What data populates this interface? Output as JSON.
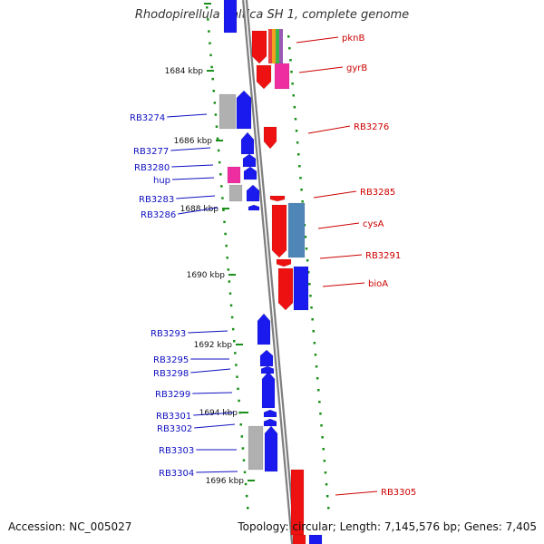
{
  "title": "Rhodopirellula baltica SH 1, complete genome",
  "accession_label": "Accession: NC_005027",
  "topology_label": "Topology: circular; Length: 7,145,576 bp; Genes: 7,405",
  "colors": {
    "backbone": "#7f7f7f",
    "red": "#ee1111",
    "blue": "#1a1aee",
    "pink": "#ee2ea0",
    "gray": "#b0b0b0",
    "steel": "#4f86b8",
    "tick_green": "#1a8f1a",
    "label_blue": "#1010c0",
    "label_red": "#cc0000"
  },
  "ticks": [
    {
      "label": "1684 kbp"
    },
    {
      "label": "1686 kbp"
    },
    {
      "label": "1688 kbp"
    },
    {
      "label": "1690 kbp"
    },
    {
      "label": "1692 kbp"
    },
    {
      "label": "1694 kbp"
    },
    {
      "label": "1696 kbp"
    }
  ],
  "left_genes": [
    {
      "name": "RB3274"
    },
    {
      "name": "RB3277"
    },
    {
      "name": "RB3280"
    },
    {
      "name": "hup"
    },
    {
      "name": "RB3283"
    },
    {
      "name": "RB3286"
    },
    {
      "name": "RB3293"
    },
    {
      "name": "RB3295"
    },
    {
      "name": "RB3298"
    },
    {
      "name": "RB3299"
    },
    {
      "name": "RB3301"
    },
    {
      "name": "RB3302"
    },
    {
      "name": "RB3303"
    },
    {
      "name": "RB3304"
    }
  ],
  "right_genes": [
    {
      "name": "pknB"
    },
    {
      "name": "gyrB"
    },
    {
      "name": "RB3276"
    },
    {
      "name": "RB3285"
    },
    {
      "name": "cysA"
    },
    {
      "name": "RB3291"
    },
    {
      "name": "bioA"
    },
    {
      "name": "RB3305"
    }
  ]
}
